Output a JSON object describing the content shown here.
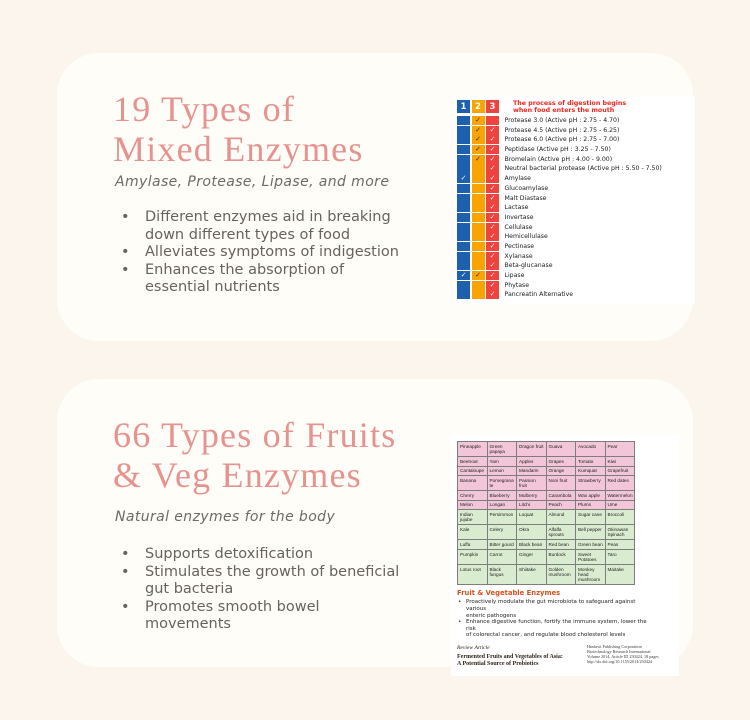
{
  "colors": {
    "page_bg": "#fbf5ed",
    "card_bg": "#fffdf8",
    "accent_pink": "#e6938f",
    "text_gray": "#67625f",
    "col_blue": "#1c60ae",
    "col_yellow": "#f9a400",
    "col_red": "#ee433e",
    "check_on_yellow": "#3a2a1a",
    "check_on_blue_red": "#ffffff",
    "fruit_pink_row": "#f2c6d8",
    "fruit_green_row": "#d9eccf",
    "orange_heading": "#d4521c",
    "note_red": "#f0261d"
  },
  "cards": [
    {
      "title_lines": [
        "19 Types of",
        "Mixed Enzymes"
      ],
      "subtitle": "Amylase, Protease, Lipase, and more",
      "bullets": [
        [
          "Different enzymes aid in breaking",
          "down different types of food"
        ],
        [
          "Alleviates symptoms of indigestion"
        ],
        [
          "Enhances the absorption of",
          "essential nutrients"
        ]
      ]
    },
    {
      "title_lines": [
        "66 Types of Fruits",
        "& Veg Enzymes"
      ],
      "subtitle": "Natural enzymes for the body",
      "bullets": [
        [
          "Supports detoxification"
        ],
        [
          "Stimulates the growth of beneficial",
          "gut bacteria"
        ],
        [
          "Promotes smooth bowel",
          "movements"
        ]
      ]
    }
  ],
  "enzyme_table": {
    "header_cols": [
      "1",
      "2",
      "3"
    ],
    "note_lines": [
      "The process of digestion begins",
      "when food enters the mouth"
    ],
    "rows": [
      {
        "label": "Protease 3.0 (Active pH : 2.75 - 4.70)",
        "checks": [
          0,
          1,
          0
        ]
      },
      {
        "label": "Protease 4.5 (Active pH : 2.75 - 6.25)",
        "checks": [
          0,
          1,
          1
        ]
      },
      {
        "label": "Protease 6.0 (Active pH : 2.75 - 7.00)",
        "checks": [
          0,
          1,
          1
        ]
      },
      {
        "label": "Peptidase (Active pH : 3.25 - 7.50)",
        "checks": [
          0,
          1,
          1
        ]
      },
      {
        "label": "Bromelain (Active pH : 4.00 - 9.00)",
        "checks": [
          0,
          1,
          1
        ]
      },
      {
        "label": "Neutral bacterial protease (Active pH : 5.50 - 7.50)",
        "checks": [
          0,
          0,
          1
        ]
      },
      {
        "label": "Amylase",
        "checks": [
          1,
          0,
          1
        ]
      },
      {
        "label": "Glucoamylase",
        "checks": [
          0,
          0,
          1
        ]
      },
      {
        "label": "Malt Diastase",
        "checks": [
          0,
          0,
          1
        ]
      },
      {
        "label": "Lactase",
        "checks": [
          0,
          0,
          1
        ]
      },
      {
        "label": "Invertase",
        "checks": [
          0,
          0,
          1
        ]
      },
      {
        "label": "Cellulase",
        "checks": [
          0,
          0,
          1
        ]
      },
      {
        "label": "Hemicellulase",
        "checks": [
          0,
          0,
          1
        ]
      },
      {
        "label": "Pectinase",
        "checks": [
          0,
          0,
          1
        ]
      },
      {
        "label": "Xylanase",
        "checks": [
          0,
          0,
          1
        ]
      },
      {
        "label": "Beta-glucanase",
        "checks": [
          0,
          0,
          1
        ]
      },
      {
        "label": "Lipase",
        "checks": [
          1,
          1,
          1
        ]
      },
      {
        "label": "Phytase",
        "checks": [
          0,
          0,
          1
        ]
      },
      {
        "label": "Pancreatin Alternative",
        "checks": [
          0,
          0,
          1
        ]
      }
    ]
  },
  "fruit_doc": {
    "pink_row_count": 6,
    "table_rows": [
      [
        "Pineapple",
        "Green papaya",
        "Dragon fruit",
        "Guava",
        "Avocado",
        "Pear"
      ],
      [
        "Beetroot",
        "Yam",
        "Apples",
        "Grapes",
        "Tomato",
        "Kiwi"
      ],
      [
        "Cantaloupe",
        "Lemon",
        "Mandarin",
        "Orange",
        "Kumquat",
        "Grapefruit"
      ],
      [
        "Banana",
        "Pomegranate",
        "Passion fruit",
        "Noni fruit",
        "Strawberry",
        "Red dates"
      ],
      [
        "Cherry",
        "Blueberry",
        "Mulberry",
        "Carambola",
        "Wax apple",
        "Watermelon"
      ],
      [
        "Melon",
        "Longan",
        "Litchi",
        "Peach",
        "Plums",
        "Ume"
      ],
      [
        "Indian jujube",
        "Persimmon",
        "Loquat",
        "Almond",
        "Sugar cane",
        "Broccoli"
      ],
      [
        "Kale",
        "Celery",
        "Okra",
        "Alfalfa sprouts",
        "Bell pepper",
        "Okinawan Spinach"
      ],
      [
        "Luffa",
        "Bitter gourd",
        "Black bean",
        "Red bean",
        "Green bean",
        "Peas"
      ],
      [
        "Pumpkin",
        "Carrot",
        "Ginger",
        "Burdock",
        "Sweet Potatoes",
        "Taro"
      ],
      [
        "Lotus root",
        "Black fungus",
        "Shiitake",
        "Golden mushroom",
        "Monkey head mushroom",
        "Maitake"
      ]
    ],
    "heading": "Fruit & Vegetable Enzymes",
    "bullets": [
      [
        "Proactively modulate the gut microbiota to safeguard against various",
        "enteric pathogens"
      ],
      [
        "Enhance digestive function, fortify the immune system, lower the risk",
        "of colorectal cancer, and regulate blood cholesterol levels"
      ]
    ],
    "review_label": "Review Article",
    "paper_title_lines": [
      "Fermented Fruits and Vegetables of Asia:",
      "A Potential Source of Probiotics"
    ],
    "publisher_lines": [
      "Hindawi Publishing Corporation",
      "Biotechnology Research International",
      "Volume 2014, Article ID 250424, 18 pages",
      "http://dx.doi.org/10.1155/2014/250424"
    ]
  }
}
